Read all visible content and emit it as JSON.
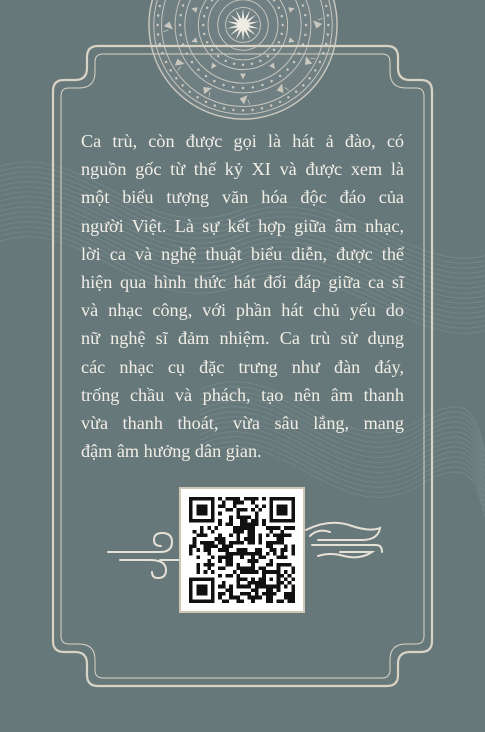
{
  "palette": {
    "background": "#67787b",
    "frame": "#d9d3c6",
    "text": "#f1eee6",
    "motif": "#c9c6bd"
  },
  "decorations": {
    "top": "dong-son-bronze-drum-icon",
    "frame": "ornate-corner-frame",
    "bottom": "auspicious-cloud-icon",
    "code": "qr-code"
  },
  "content": {
    "lines": [
      "Ca trù, còn được gọi là hát ả đào, có",
      "nguồn gốc từ thế kỷ XI và được xem là",
      "một biểu tượng văn hóa độc đáo của",
      "người Việt. Là sự kết hợp giữa âm nhạc,",
      "lời ca và nghệ thuật biểu diễn, được thể",
      "hiện qua hình thức hát đối đáp giữa ca sĩ",
      "và nhạc công, với phần hát chủ yếu do",
      "nữ nghệ sĩ đảm nhiệm. Ca trù sử dụng",
      "các nhạc cụ đặc trưng như đàn đáy,",
      "trống chầu và phách, tạo nên âm thanh",
      "vừa thanh thoát, vừa sâu lắng, mang",
      "đậm âm hưởng dân gian."
    ]
  }
}
